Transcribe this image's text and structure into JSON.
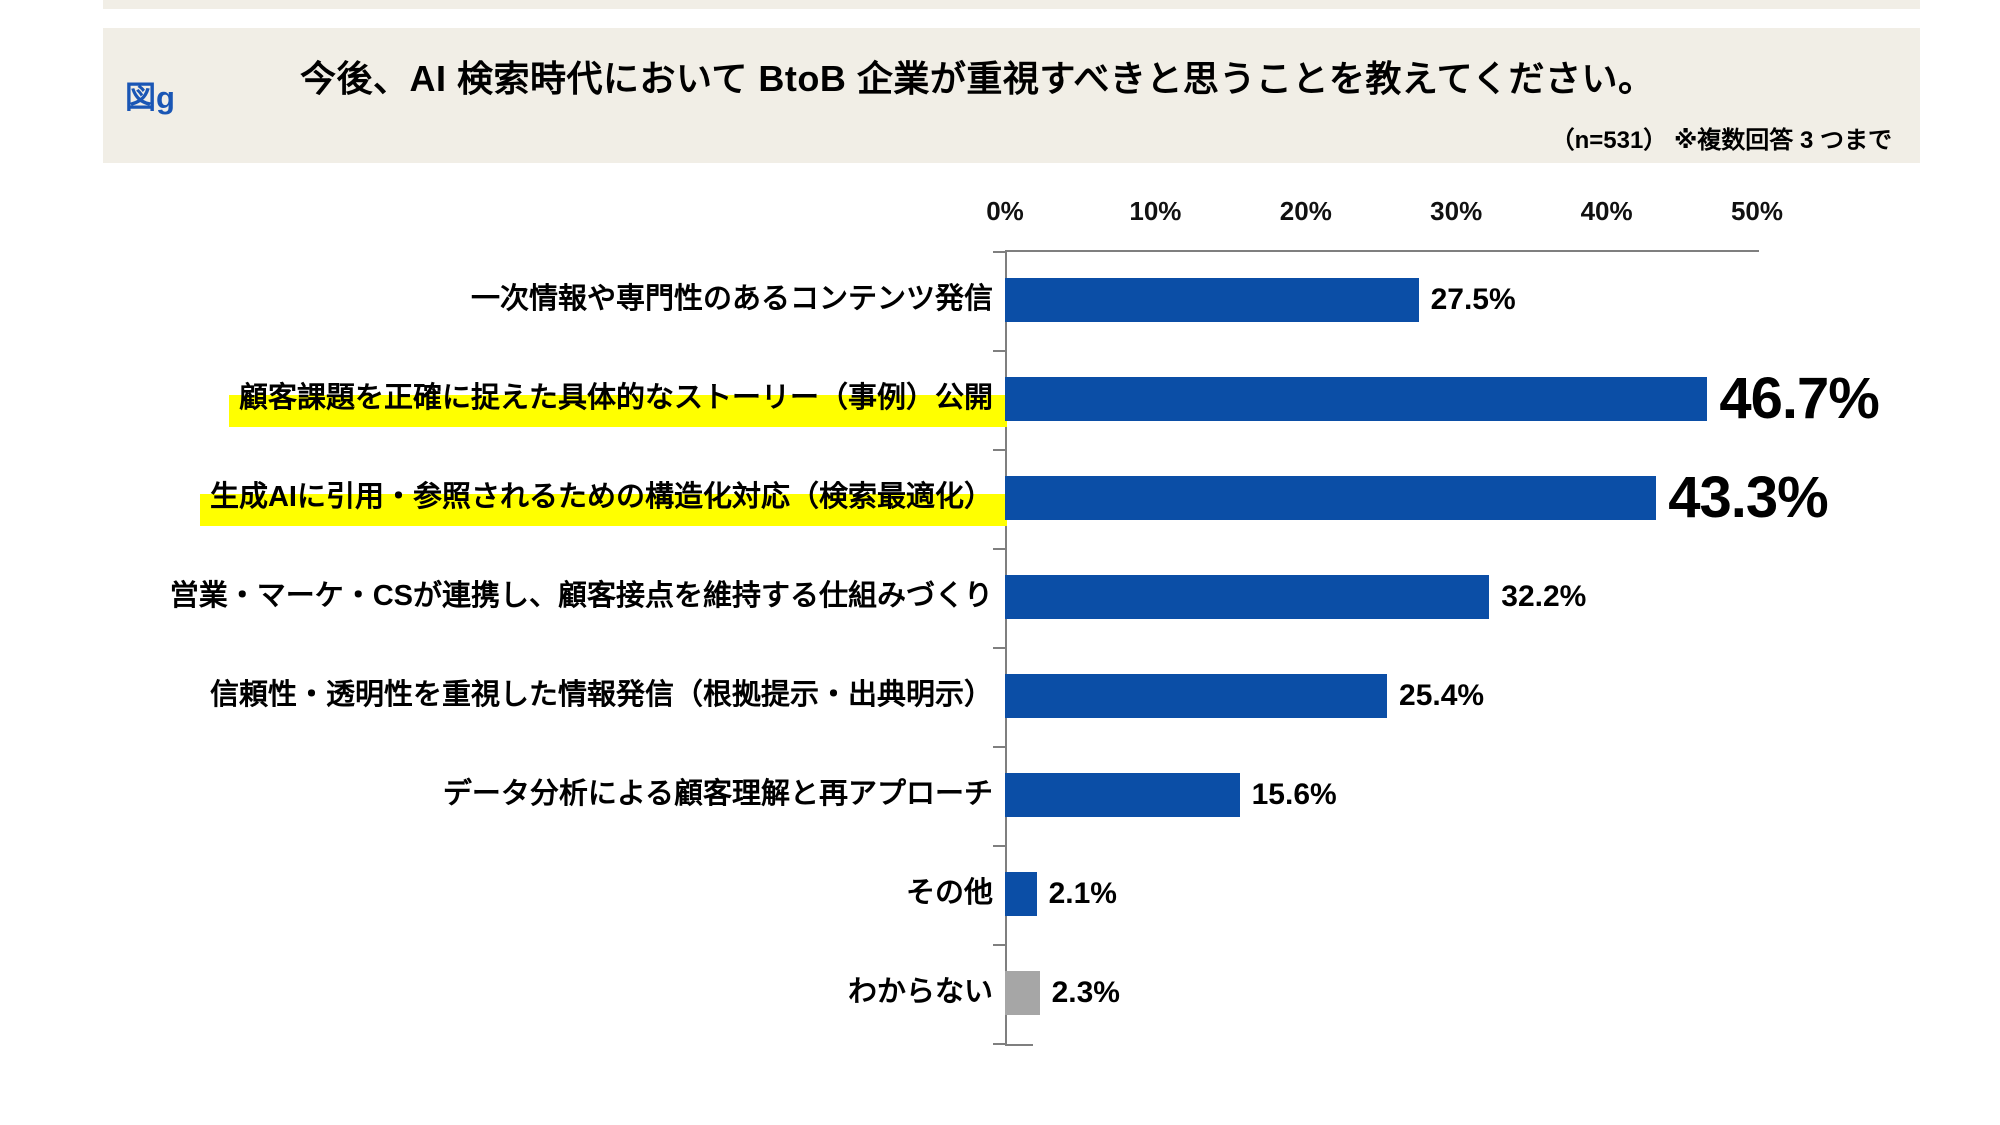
{
  "header": {
    "figure_label": "図g",
    "title": "今後、AI 検索時代において BtoB 企業が重視すべきと思うことを教えてください。",
    "note": "（n=531） ※複数回答 3 つまで"
  },
  "colors": {
    "header_bg": "#F1EEE6",
    "figure_label_blue": "#1A56B5",
    "bar_blue": "#0B4EA6",
    "bar_gray": "#A6A6A6",
    "axis_gray": "#7F7F7F",
    "highlight_yellow": "#FFFF00"
  },
  "chart_data": {
    "type": "bar",
    "orientation": "horizontal",
    "title": "今後、AI 検索時代において BtoB 企業が重視すべきと思うことを教えてください。",
    "sample_note": "（n=531） ※複数回答 3 つまで",
    "xlim": [
      0,
      50
    ],
    "x_tick_labels": [
      "0%",
      "10%",
      "20%",
      "30%",
      "40%",
      "50%"
    ],
    "grid": false,
    "categories": [
      "一次情報や専門性のあるコンテンツ発信",
      "顧客課題を正確に捉えた具体的なストーリー（事例）公開",
      "生成AIに引用・参照されるための構造化対応（検索最適化）",
      "営業・マーケ・CSが連携し、顧客接点を維持する仕組みづくり",
      "信頼性・透明性を重視した情報発信（根拠提示・出典明示）",
      "データ分析による顧客理解と再アプローチ",
      "その他",
      "わからない"
    ],
    "values": [
      27.5,
      46.7,
      43.3,
      32.2,
      25.4,
      15.6,
      2.1,
      2.3
    ],
    "value_labels": [
      "27.5%",
      "46.7%",
      "43.3%",
      "32.2%",
      "25.4%",
      "15.6%",
      "2.1%",
      "2.3%"
    ],
    "bar_colors": [
      "#0B4EA6",
      "#0B4EA6",
      "#0B4EA6",
      "#0B4EA6",
      "#0B4EA6",
      "#0B4EA6",
      "#0B4EA6",
      "#A6A6A6"
    ],
    "highlighted_rows": [
      1,
      2
    ],
    "large_label_rows": [
      1,
      2
    ]
  }
}
